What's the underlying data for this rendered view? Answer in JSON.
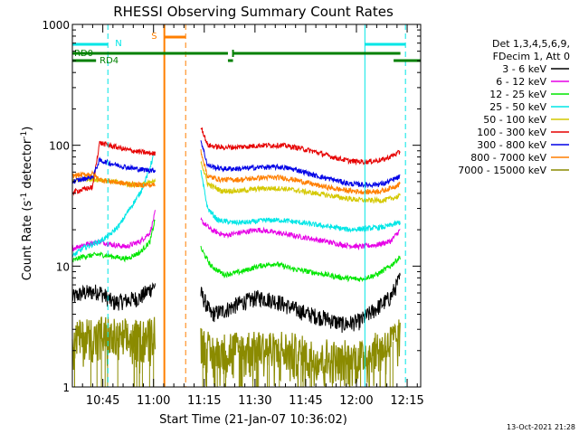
{
  "chart_data": {
    "type": "line",
    "title": "RHESSI Observing Summary Count Rates",
    "xlabel": "Start Time (21-Jan-07 10:36:02)",
    "ylabel_main": "Count Rate (s",
    "ylabel_sup1": "-1",
    "ylabel_mid": " detector",
    "ylabel_sup2": "-1",
    "ylabel_end": ")",
    "y_scale": "log",
    "ylim": [
      1,
      1000
    ],
    "xlim_minutes": [
      0,
      103
    ],
    "x_ticks": [
      {
        "min": 9,
        "label": "10:45"
      },
      {
        "min": 24,
        "label": "11:00"
      },
      {
        "min": 39,
        "label": "11:15"
      },
      {
        "min": 54,
        "label": "11:30"
      },
      {
        "min": 69,
        "label": "11:45"
      },
      {
        "min": 84,
        "label": "12:00"
      },
      {
        "min": 99,
        "label": "12:15"
      }
    ],
    "y_ticks": [
      {
        "value": 1,
        "label": "1"
      },
      {
        "value": 10,
        "label": "10"
      },
      {
        "value": 100,
        "label": "100"
      },
      {
        "value": 1000,
        "label": "1000"
      }
    ],
    "legend_header": [
      "Det 1,3,4,5,6,9,",
      "FDecim 1, Att 0"
    ],
    "gap_minutes": [
      27.2,
      36.8
    ],
    "series": [
      {
        "name": "3 - 6 keV",
        "color": "#000000",
        "pre": [
          [
            0,
            5.5
          ],
          [
            3,
            6
          ],
          [
            8,
            6.2
          ],
          [
            12,
            5
          ],
          [
            16,
            5.2
          ],
          [
            20,
            5.5
          ],
          [
            24.5,
            7
          ]
        ],
        "post": [
          [
            38,
            6
          ],
          [
            41,
            4
          ],
          [
            45,
            4.3
          ],
          [
            50,
            5
          ],
          [
            55,
            5.5
          ],
          [
            60,
            5.2
          ],
          [
            65,
            4.5
          ],
          [
            70,
            4
          ],
          [
            75,
            3.7
          ],
          [
            80,
            3.3
          ],
          [
            85,
            3.5
          ],
          [
            90,
            4.5
          ],
          [
            94,
            5.5
          ],
          [
            97,
            8
          ]
        ]
      },
      {
        "name": "6 - 12 keV",
        "color": "#e600e6",
        "pre": [
          [
            0,
            14
          ],
          [
            3,
            15
          ],
          [
            8,
            16
          ],
          [
            12,
            15
          ],
          [
            16,
            14.5
          ],
          [
            20,
            16
          ],
          [
            23,
            19
          ],
          [
            24.5,
            28
          ]
        ],
        "post": [
          [
            38,
            24
          ],
          [
            41,
            20
          ],
          [
            45,
            18
          ],
          [
            50,
            19
          ],
          [
            55,
            20
          ],
          [
            60,
            19
          ],
          [
            65,
            18
          ],
          [
            70,
            17
          ],
          [
            75,
            16
          ],
          [
            80,
            15
          ],
          [
            85,
            14.5
          ],
          [
            90,
            15
          ],
          [
            94,
            16
          ],
          [
            97,
            20
          ]
        ]
      },
      {
        "name": "12 - 25 keV",
        "color": "#00e600",
        "pre": [
          [
            0,
            11
          ],
          [
            3,
            12
          ],
          [
            8,
            12.5
          ],
          [
            12,
            12
          ],
          [
            16,
            11.5
          ],
          [
            20,
            13
          ],
          [
            23,
            16
          ],
          [
            24.5,
            25
          ]
        ],
        "post": [
          [
            38,
            14
          ],
          [
            41,
            10
          ],
          [
            45,
            8.5
          ],
          [
            50,
            9
          ],
          [
            55,
            10
          ],
          [
            60,
            10.5
          ],
          [
            65,
            9.5
          ],
          [
            70,
            9
          ],
          [
            75,
            8.5
          ],
          [
            80,
            8
          ],
          [
            85,
            7.8
          ],
          [
            90,
            8.5
          ],
          [
            94,
            10
          ],
          [
            97,
            12
          ]
        ]
      },
      {
        "name": "25 - 50 keV",
        "color": "#00e6e6",
        "pre": [
          [
            0,
            12
          ],
          [
            3,
            14
          ],
          [
            8,
            16
          ],
          [
            11,
            18
          ],
          [
            14,
            22
          ],
          [
            17,
            30
          ],
          [
            20,
            40
          ],
          [
            22,
            55
          ],
          [
            24.5,
            90
          ]
        ],
        "post": [
          [
            38,
            60
          ],
          [
            40,
            30
          ],
          [
            43,
            24
          ],
          [
            47,
            23
          ],
          [
            52,
            23
          ],
          [
            57,
            24
          ],
          [
            62,
            24
          ],
          [
            67,
            23
          ],
          [
            72,
            22
          ],
          [
            77,
            21
          ],
          [
            82,
            20
          ],
          [
            87,
            20.5
          ],
          [
            92,
            21
          ],
          [
            97,
            23
          ]
        ]
      },
      {
        "name": "50 - 100 keV",
        "color": "#d4c800",
        "pre": [
          [
            0,
            50
          ],
          [
            4,
            53
          ],
          [
            8,
            52
          ],
          [
            12,
            50
          ],
          [
            16,
            48
          ],
          [
            20,
            47
          ],
          [
            24.5,
            50
          ]
        ],
        "post": [
          [
            38,
            75
          ],
          [
            40,
            48
          ],
          [
            44,
            42
          ],
          [
            50,
            42
          ],
          [
            56,
            44
          ],
          [
            62,
            44
          ],
          [
            67,
            42
          ],
          [
            72,
            40
          ],
          [
            77,
            38
          ],
          [
            82,
            36
          ],
          [
            87,
            35
          ],
          [
            92,
            35
          ],
          [
            97,
            38
          ]
        ]
      },
      {
        "name": "100 - 300 keV",
        "color": "#e60000",
        "pre": [
          [
            0,
            41
          ],
          [
            6,
            45
          ],
          [
            8,
            105
          ],
          [
            12,
            98
          ],
          [
            16,
            92
          ],
          [
            20,
            88
          ],
          [
            24.5,
            85
          ]
        ],
        "post": [
          [
            38,
            145
          ],
          [
            40,
            100
          ],
          [
            44,
            96
          ],
          [
            50,
            97
          ],
          [
            56,
            100
          ],
          [
            62,
            100
          ],
          [
            67,
            95
          ],
          [
            72,
            88
          ],
          [
            77,
            80
          ],
          [
            82,
            74
          ],
          [
            87,
            73
          ],
          [
            92,
            76
          ],
          [
            97,
            88
          ]
        ]
      },
      {
        "name": "300 - 800 keV",
        "color": "#0000e6",
        "pre": [
          [
            0,
            50
          ],
          [
            6,
            55
          ],
          [
            8,
            75
          ],
          [
            12,
            70
          ],
          [
            16,
            66
          ],
          [
            20,
            63
          ],
          [
            24.5,
            62
          ]
        ],
        "post": [
          [
            38,
            110
          ],
          [
            40,
            68
          ],
          [
            44,
            64
          ],
          [
            50,
            64
          ],
          [
            56,
            66
          ],
          [
            62,
            66
          ],
          [
            67,
            62
          ],
          [
            72,
            56
          ],
          [
            77,
            52
          ],
          [
            82,
            48
          ],
          [
            87,
            47
          ],
          [
            92,
            48
          ],
          [
            97,
            55
          ]
        ]
      },
      {
        "name": "800 - 7000 keV",
        "color": "#ff7f00",
        "pre": [
          [
            0,
            56
          ],
          [
            6,
            58
          ],
          [
            8,
            52
          ],
          [
            12,
            50
          ],
          [
            16,
            48
          ],
          [
            20,
            47
          ],
          [
            24.5,
            47
          ]
        ],
        "post": [
          [
            38,
            90
          ],
          [
            40,
            55
          ],
          [
            44,
            52
          ],
          [
            50,
            52
          ],
          [
            56,
            54
          ],
          [
            62,
            54
          ],
          [
            67,
            51
          ],
          [
            72,
            47
          ],
          [
            77,
            44
          ],
          [
            82,
            42
          ],
          [
            87,
            41
          ],
          [
            92,
            42
          ],
          [
            97,
            48
          ]
        ]
      },
      {
        "name": "7000 - 15000 keV",
        "color": "#8b8b00",
        "pre": [
          [
            0,
            2.5
          ],
          [
            4,
            2.6
          ],
          [
            8,
            2.7
          ],
          [
            12,
            2.5
          ],
          [
            16,
            2.4
          ],
          [
            20,
            2.6
          ],
          [
            24.5,
            2.8
          ]
        ],
        "post": [
          [
            38,
            2.5
          ],
          [
            41,
            1.8
          ],
          [
            45,
            2
          ],
          [
            50,
            2
          ],
          [
            55,
            2.2
          ],
          [
            60,
            2
          ],
          [
            65,
            1.9
          ],
          [
            70,
            1.8
          ],
          [
            75,
            1.7
          ],
          [
            80,
            1.6
          ],
          [
            85,
            1.8
          ],
          [
            90,
            2
          ],
          [
            94,
            2.3
          ],
          [
            97,
            2.6
          ]
        ]
      }
    ],
    "annotations": {
      "night_flag": {
        "label": "N",
        "color": "#00e6e6",
        "segments": [
          [
            0,
            10.5
          ],
          [
            86.5,
            98.5
          ]
        ]
      },
      "saa_flag": {
        "label": "S",
        "color": "#ff7f00",
        "segments": [
          [
            27.2,
            33.5
          ]
        ]
      },
      "rd0": {
        "label": "RD0",
        "color": "#008000",
        "segments": [
          [
            0,
            46
          ],
          [
            47.5,
            97
          ]
        ]
      },
      "rd4": {
        "label": "RD4",
        "color": "#008000",
        "segments": [
          [
            0,
            7
          ],
          [
            46,
            47.5
          ],
          [
            95,
            103
          ]
        ]
      },
      "cyan_dashed": [
        10.5,
        98.5
      ],
      "cyan_solid": [
        86.5
      ],
      "orange_solid": [
        27.2
      ],
      "orange_dashed": [
        33.5
      ]
    }
  },
  "timestamp": "13-Oct-2021 21:28"
}
